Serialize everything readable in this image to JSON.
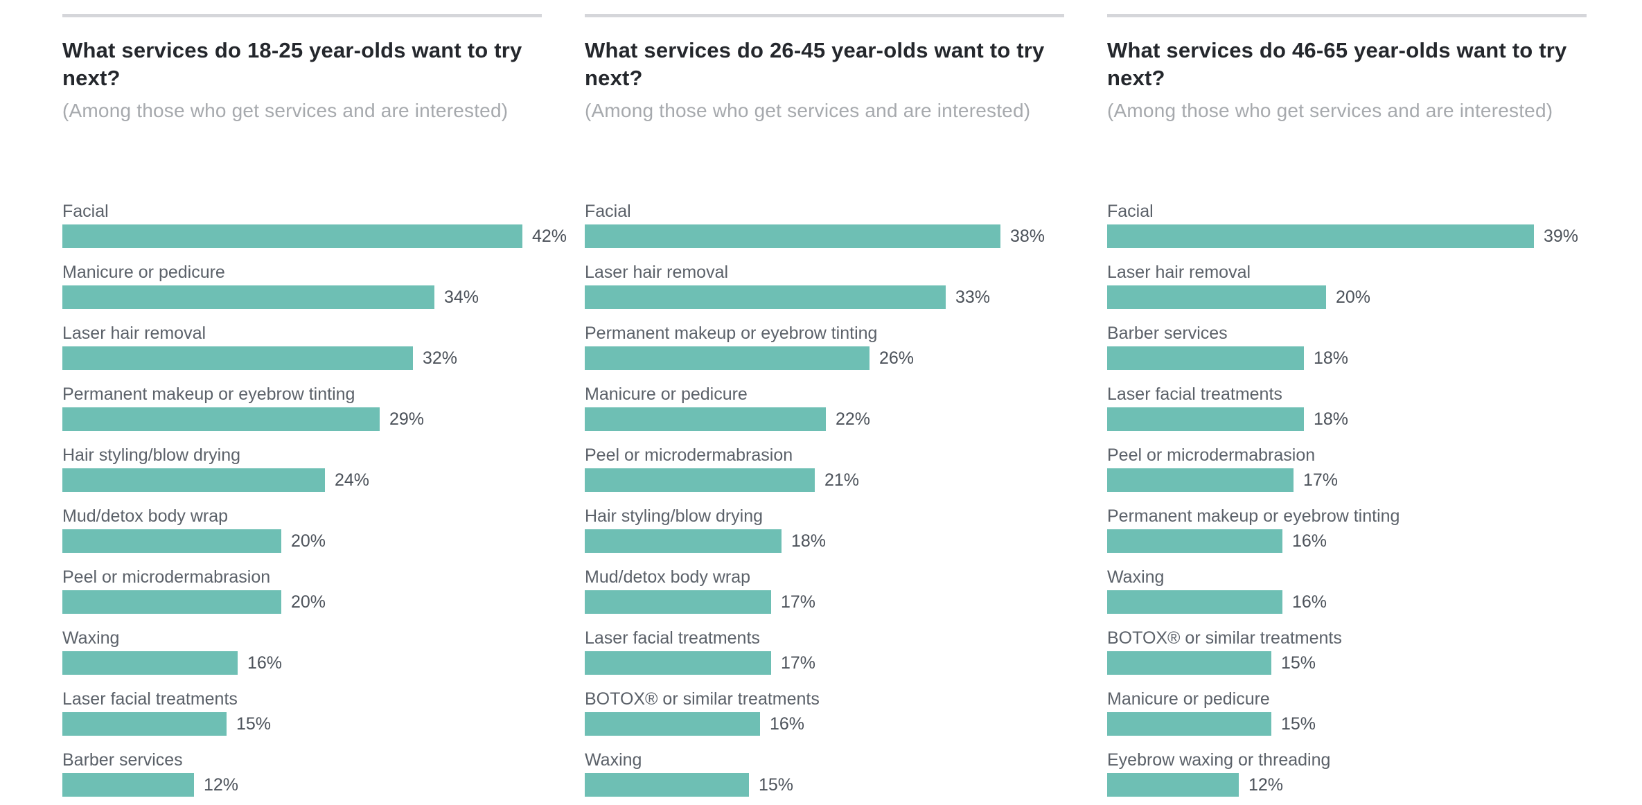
{
  "colors": {
    "bar": "#6ebfb4",
    "separator": "#d5d6da",
    "title": "#24272c",
    "subtitle": "#a6a9ad",
    "label": "#5b6169",
    "value": "#4c525a"
  },
  "chart_data": [
    {
      "type": "bar",
      "orientation": "horizontal",
      "title": "What services do 18-25 year-olds want to try next?",
      "subtitle": "(Among those who get services and are interested)",
      "unit": "%",
      "xlim": [
        0,
        45
      ],
      "grid": false,
      "legend": false,
      "categories": [
        "Facial",
        "Manicure or pedicure",
        "Laser hair removal",
        "Permanent makeup or eyebrow tinting",
        "Hair styling/blow drying",
        "Mud/detox body wrap",
        "Peel or microdermabrasion",
        "Waxing",
        "Laser facial treatments",
        "Barber services"
      ],
      "values": [
        42,
        34,
        32,
        29,
        24,
        20,
        20,
        16,
        15,
        12
      ]
    },
    {
      "type": "bar",
      "orientation": "horizontal",
      "title": "What services do 26-45 year-olds want to try next?",
      "subtitle": "(Among those who get services and are interested)",
      "unit": "%",
      "xlim": [
        0,
        45
      ],
      "grid": false,
      "legend": false,
      "categories": [
        "Facial",
        "Laser hair removal",
        "Permanent makeup or eyebrow tinting",
        "Manicure or pedicure",
        "Peel or microdermabrasion",
        "Hair styling/blow drying",
        "Mud/detox body wrap",
        "Laser facial treatments",
        "BOTOX® or similar treatments",
        "Waxing"
      ],
      "values": [
        38,
        33,
        26,
        22,
        21,
        18,
        17,
        17,
        16,
        15
      ]
    },
    {
      "type": "bar",
      "orientation": "horizontal",
      "title": "What services do 46-65 year-olds want to try next?",
      "subtitle": "(Among those who get services and are interested)",
      "unit": "%",
      "xlim": [
        0,
        45
      ],
      "grid": false,
      "legend": false,
      "categories": [
        "Facial",
        "Laser hair removal",
        "Barber services",
        "Laser facial treatments",
        "Peel or microdermabrasion",
        "Permanent makeup or eyebrow tinting",
        "Waxing",
        "BOTOX® or similar treatments",
        "Manicure or pedicure",
        "Eyebrow waxing or threading"
      ],
      "values": [
        39,
        20,
        18,
        18,
        17,
        16,
        16,
        15,
        15,
        12
      ]
    }
  ]
}
